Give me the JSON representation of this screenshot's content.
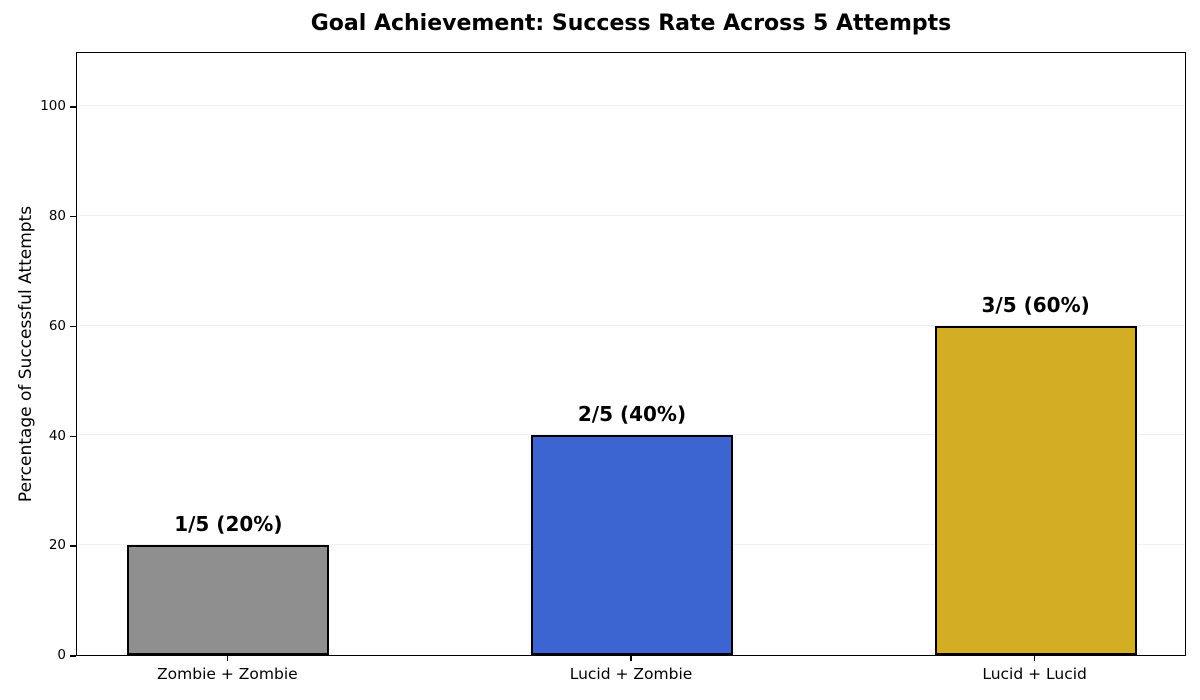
{
  "chart_data": {
    "type": "bar",
    "title": "Goal Achievement: Success Rate Across 5 Attempts",
    "xlabel": "",
    "ylabel": "Percentage of Successful Attempts",
    "categories": [
      "Zombie + Zombie",
      "Lucid + Zombie",
      "Lucid + Lucid"
    ],
    "values": [
      20,
      40,
      60
    ],
    "bar_labels": [
      "1/5 (20%)",
      "2/5 (40%)",
      "3/5 (60%)"
    ],
    "bar_colors": [
      "#8f8f8f",
      "#3d65d1",
      "#d3ae25"
    ],
    "bar_edge_color": "#000000",
    "ylim": [
      0,
      110
    ],
    "yticks": [
      0,
      20,
      40,
      60,
      80,
      100
    ],
    "grid": true,
    "grid_color": "#f0f0f0",
    "legend_position": "none",
    "background_color": "#ffffff"
  }
}
